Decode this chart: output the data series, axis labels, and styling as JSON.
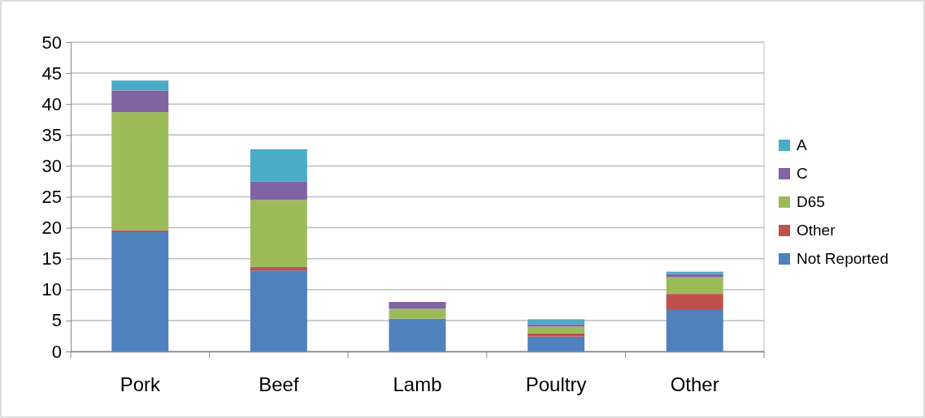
{
  "chart_data": {
    "type": "bar",
    "stacked": true,
    "categories": [
      "Pork",
      "Beef",
      "Lamb",
      "Poultry",
      "Other"
    ],
    "series": [
      {
        "name": "Not Reported",
        "color": "#4f81bd",
        "values": [
          19.3,
          13.1,
          5.3,
          2.4,
          6.7
        ]
      },
      {
        "name": "Other",
        "color": "#c0504d",
        "values": [
          0.3,
          0.6,
          0,
          0.5,
          2.6
        ]
      },
      {
        "name": "D65",
        "color": "#9bbb59",
        "values": [
          19.1,
          10.8,
          1.6,
          1.1,
          2.7
        ]
      },
      {
        "name": "C",
        "color": "#8064a2",
        "values": [
          3.5,
          3.0,
          1.1,
          0.4,
          0.5
        ]
      },
      {
        "name": "A",
        "color": "#4bacc6",
        "values": [
          1.6,
          5.2,
          0,
          0.8,
          0.4
        ]
      }
    ],
    "ylim": [
      0,
      50
    ],
    "yticks": [
      0,
      5,
      10,
      15,
      20,
      25,
      30,
      35,
      40,
      45,
      50
    ],
    "grid": "y",
    "legend": "right"
  }
}
